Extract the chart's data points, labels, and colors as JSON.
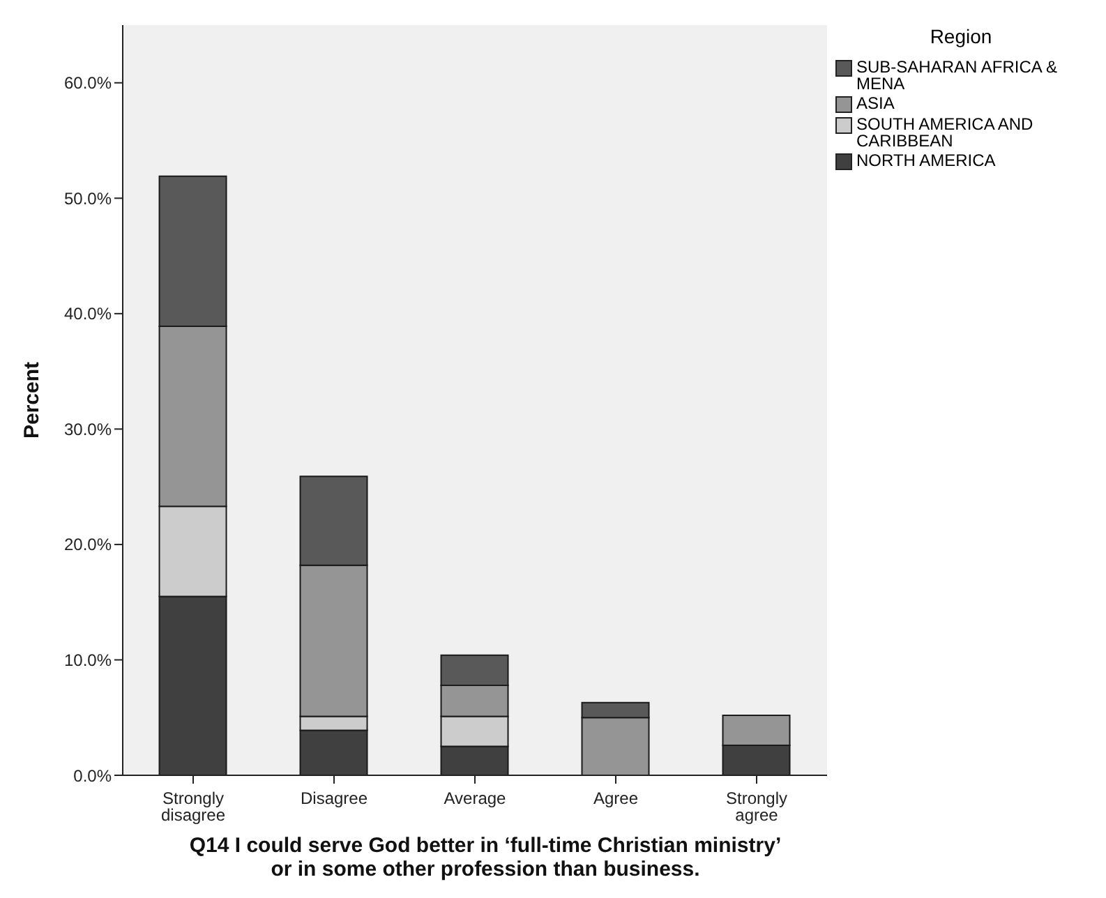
{
  "chart_data": {
    "type": "bar",
    "stacked": true,
    "xlabel": "Q14 I could serve God better in ‘full-time Christian ministry’ or in some other profession than business.",
    "ylabel": "Percent",
    "legend_title": "Region",
    "categories": [
      "Strongly disagree",
      "Disagree",
      "Average",
      "Agree",
      "Strongly agree"
    ],
    "series": [
      {
        "name": "NORTH AMERICA",
        "color": "#404040",
        "values": [
          15.5,
          3.9,
          2.5,
          null,
          2.6
        ]
      },
      {
        "name": "SOUTH AMERICA AND CARIBBEAN",
        "color": "#cccccc",
        "values": [
          7.8,
          1.2,
          2.6,
          0,
          0
        ]
      },
      {
        "name": "ASIA",
        "color": "#959595",
        "values": [
          15.6,
          13.1,
          2.7,
          5.0,
          2.6
        ]
      },
      {
        "name": "SUB-SAHARAN AFRICA & MENA",
        "color": "#595959",
        "values": [
          13.0,
          7.7,
          2.6,
          1.3,
          0
        ]
      }
    ],
    "ylim": [
      0,
      65
    ],
    "yticks": [
      {
        "value": 0,
        "label": "0.0%"
      },
      {
        "value": 10,
        "label": "10.0%"
      },
      {
        "value": 20,
        "label": "20.0%"
      },
      {
        "value": 30,
        "label": "30.0%"
      },
      {
        "value": 40,
        "label": "40.0%"
      },
      {
        "value": 50,
        "label": "50.0%"
      },
      {
        "value": 60,
        "label": "60.0%"
      }
    ],
    "grid": false,
    "legend": "top right"
  }
}
